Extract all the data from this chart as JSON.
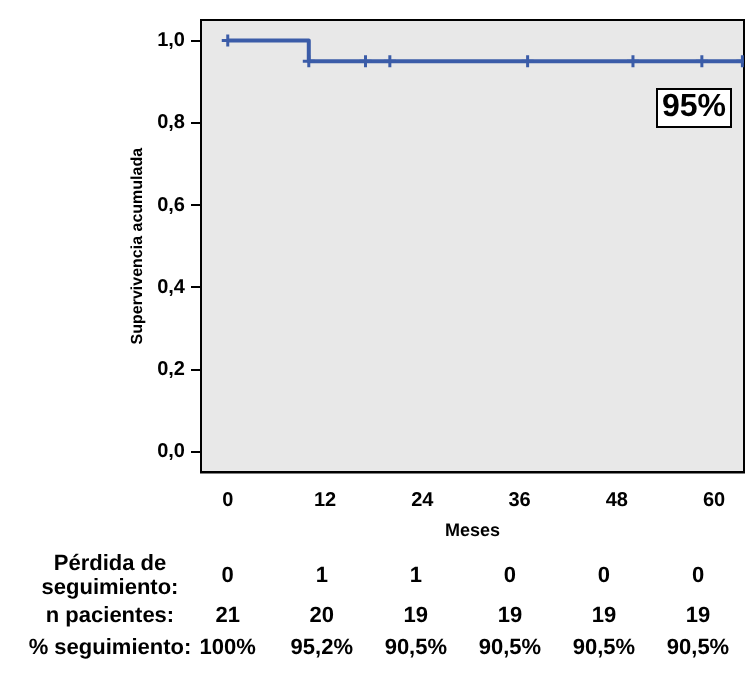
{
  "chart_data": {
    "type": "step",
    "xlabel": "Meses",
    "ylabel": "Supervivencia acumulada",
    "series": [
      {
        "color": "#3b5ca8",
        "x": [
          0,
          10,
          17,
          20,
          37,
          50,
          58.5,
          63.5
        ],
        "values": [
          1,
          0.95,
          0.95,
          0.95,
          0.95,
          0.95,
          0.95,
          0.95
        ]
      }
    ],
    "xlim": [
      -3.3,
      63.7
    ],
    "xticks": [
      0,
      12,
      24,
      36,
      48,
      60
    ],
    "ylim": [
      -0.05,
      1.05
    ],
    "yticks": [
      {
        "value": 0,
        "label": "0,0"
      },
      {
        "value": 0.2,
        "label": "0,2"
      },
      {
        "value": 0.4,
        "label": "0,4"
      },
      {
        "value": 0.6,
        "label": "0,6"
      },
      {
        "value": 0.8,
        "label": "0,8"
      },
      {
        "value": 1,
        "label": "1,0"
      }
    ],
    "marker": "cross",
    "grid": false,
    "legend": false,
    "annotations": [
      "95%",
      "Pérdida de seguimiento:",
      "0",
      "1",
      "1",
      "0",
      "0",
      "0",
      "n pacientes:",
      "21",
      "20",
      "19",
      "19",
      "19",
      "19",
      "% seguimiento:",
      "100%",
      "95,2%",
      "90,5%",
      "90,5%",
      "90,5%",
      "90,5%"
    ]
  }
}
